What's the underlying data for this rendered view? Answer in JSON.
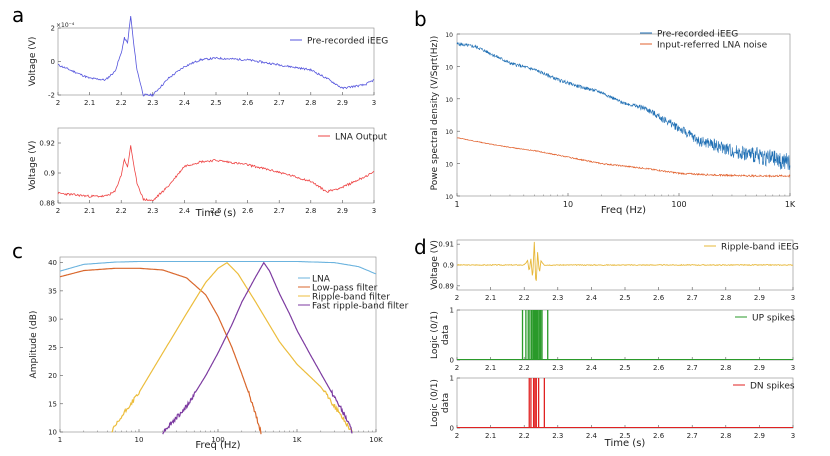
{
  "panel_letters": {
    "a": "a",
    "b": "b",
    "c": "c",
    "d": "d"
  },
  "colors": {
    "blue_eeg": "#5555dd",
    "red_lna": "#ee4444",
    "psd_blue": "#1f6fb4",
    "psd_orange": "#e2622e",
    "lna": "#6bb3de",
    "lowpass": "#d9672c",
    "ripple": "#ecbd3c",
    "fastripple": "#7c3aa0",
    "yellow_d": "#e7b83a",
    "green_up": "#2a9a2a",
    "red_dn": "#e02222"
  },
  "chart_data": [
    {
      "id": "a1",
      "type": "line",
      "title": "",
      "xlabel": "",
      "ylabel": "Voltage (V)",
      "y_multiplier": "×10⁻⁴",
      "xlim": [
        2,
        3
      ],
      "ylim": [
        -2,
        2
      ],
      "xticks": [
        "2",
        "2.1",
        "2.2",
        "2.3",
        "2.4",
        "2.5",
        "2.6",
        "2.7",
        "2.8",
        "2.9",
        "3"
      ],
      "yticks": [
        "-2",
        "0",
        "2"
      ],
      "legend": [
        "Pre-recorded iEEG"
      ],
      "legend_position": "top-right",
      "series": [
        {
          "name": "Pre-recorded iEEG",
          "x": [
            2.0,
            2.05,
            2.1,
            2.15,
            2.18,
            2.2,
            2.21,
            2.22,
            2.23,
            2.24,
            2.25,
            2.27,
            2.3,
            2.35,
            2.4,
            2.45,
            2.5,
            2.6,
            2.7,
            2.8,
            2.85,
            2.9,
            2.93,
            2.97,
            3.0
          ],
          "y": [
            -0.2,
            -0.6,
            -1.0,
            -1.1,
            -0.6,
            0.5,
            1.4,
            1.1,
            2.7,
            1.0,
            -0.5,
            -2.0,
            -2.0,
            -1.0,
            -0.3,
            0.1,
            0.2,
            0.1,
            -0.2,
            -0.5,
            -1.0,
            -1.6,
            -1.5,
            -1.4,
            -1.1
          ]
        }
      ]
    },
    {
      "id": "a2",
      "type": "line",
      "title": "",
      "xlabel": "Time (s)",
      "ylabel": "Voltage (V)",
      "xlim": [
        2,
        3
      ],
      "ylim": [
        0.88,
        0.93
      ],
      "xticks": [
        "2",
        "2.1",
        "2.2",
        "2.3",
        "2.4",
        "2.5",
        "2.6",
        "2.7",
        "2.8",
        "2.9",
        "3"
      ],
      "yticks": [
        "0.88",
        "0.9",
        "0.92"
      ],
      "legend": [
        "LNA Output"
      ],
      "legend_position": "top-right",
      "series": [
        {
          "name": "LNA Output",
          "x": [
            2.0,
            2.05,
            2.1,
            2.15,
            2.18,
            2.2,
            2.21,
            2.22,
            2.23,
            2.24,
            2.25,
            2.27,
            2.3,
            2.35,
            2.4,
            2.45,
            2.5,
            2.6,
            2.7,
            2.8,
            2.85,
            2.9,
            2.95,
            3.0
          ],
          "y": [
            0.8865,
            0.8855,
            0.8845,
            0.8845,
            0.8875,
            0.8985,
            0.9095,
            0.9035,
            0.9185,
            0.9045,
            0.8935,
            0.8825,
            0.8815,
            0.8915,
            0.9045,
            0.9075,
            0.9085,
            0.9055,
            0.9005,
            0.8945,
            0.8875,
            0.8905,
            0.8955,
            0.9005
          ]
        }
      ]
    },
    {
      "id": "b",
      "type": "line",
      "title": "",
      "xlabel": "Freq (Hz)",
      "ylabel": "Powe spectral density (V/Sqrt(Hz))",
      "xscale": "log",
      "xlim": [
        1,
        1000
      ],
      "ylim_exponent": [
        -10,
        -5
      ],
      "xticks": [
        "1",
        "10",
        "100",
        "1K"
      ],
      "yticks": [
        "10",
        "10",
        "10",
        "10",
        "10",
        "10"
      ],
      "legend": [
        "Pre-recorded iEEG",
        "Input-referred LNA noise"
      ],
      "legend_position": "top-right",
      "series": [
        {
          "name": "Pre-recorded iEEG",
          "x": [
            1,
            1.5,
            2,
            3,
            5,
            8,
            12,
            20,
            30,
            50,
            70,
            100,
            150,
            200,
            300,
            500,
            700,
            1000
          ],
          "log10_y": [
            -5.3,
            -5.4,
            -5.6,
            -5.9,
            -6.1,
            -6.4,
            -6.6,
            -6.8,
            -7.1,
            -7.3,
            -7.6,
            -7.9,
            -8.3,
            -8.4,
            -8.6,
            -8.75,
            -8.85,
            -9.0
          ]
        },
        {
          "name": "Input-referred LNA noise",
          "x": [
            1,
            2,
            3,
            5,
            10,
            20,
            50,
            100,
            200,
            500,
            1000
          ],
          "log10_y": [
            -8.2,
            -8.4,
            -8.5,
            -8.6,
            -8.8,
            -9.0,
            -9.15,
            -9.3,
            -9.35,
            -9.38,
            -9.38
          ]
        }
      ]
    },
    {
      "id": "c",
      "type": "line",
      "title": "",
      "xlabel": "Freq (Hz)",
      "ylabel": "Amplitude (dB)",
      "xscale": "log",
      "xlim": [
        1,
        10000
      ],
      "ylim": [
        10,
        41
      ],
      "xticks": [
        "1",
        "10",
        "100",
        "1K",
        "10K"
      ],
      "yticks": [
        "10",
        "15",
        "20",
        "25",
        "30",
        "35",
        "40"
      ],
      "legend": [
        "LNA",
        "Low-pass filter",
        "Ripple-band filter",
        "Fast ripple-band filter"
      ],
      "legend_position": "right",
      "series": [
        {
          "name": "LNA",
          "x": [
            1,
            2,
            5,
            10,
            100,
            1000,
            3000,
            6000,
            10000
          ],
          "y": [
            38.5,
            39.7,
            40.1,
            40.2,
            40.2,
            40.2,
            40.0,
            39.3,
            38.0
          ]
        },
        {
          "name": "Low-pass filter",
          "x": [
            1,
            2,
            5,
            10,
            20,
            40,
            70,
            100,
            150,
            200,
            250,
            300,
            350
          ],
          "y": [
            37.5,
            38.6,
            39.0,
            39.0,
            38.7,
            37.3,
            34.3,
            30.5,
            25.0,
            20.3,
            16.5,
            13.0,
            10.0
          ]
        },
        {
          "name": "Ripple-band filter",
          "x": [
            4.5,
            7,
            10,
            20,
            40,
            70,
            100,
            130,
            180,
            300,
            600,
            1000,
            2000,
            3000,
            4000,
            5000
          ],
          "y": [
            10.0,
            14.0,
            17.0,
            24.0,
            31.0,
            36.5,
            39.0,
            40.0,
            38.0,
            33.0,
            26.0,
            22.0,
            18.0,
            14.5,
            12.0,
            10.0
          ]
        },
        {
          "name": "Fast ripple-band filter",
          "x": [
            20,
            40,
            70,
            100,
            150,
            200,
            300,
            380,
            450,
            600,
            800,
            1000,
            1500,
            2500,
            4000,
            5000
          ],
          "y": [
            10.0,
            14.5,
            20.0,
            24.0,
            29.0,
            33.0,
            37.5,
            40.0,
            38.5,
            34.5,
            31.0,
            28.0,
            23.5,
            18.0,
            13.0,
            10.0
          ]
        }
      ]
    },
    {
      "id": "d1",
      "type": "line",
      "title": "",
      "xlabel": "",
      "ylabel": "Voltage (V)",
      "xlim": [
        2,
        3
      ],
      "ylim": [
        0.888,
        0.912
      ],
      "xticks": [
        "2",
        "2.1",
        "2.2",
        "2.3",
        "2.4",
        "2.5",
        "2.6",
        "2.7",
        "2.8",
        "2.9",
        "3"
      ],
      "yticks": [
        "0.89",
        "0.9",
        "0.91"
      ],
      "legend": [
        "Ripple-band iEEG"
      ],
      "legend_position": "top-right",
      "series": [
        {
          "name": "Ripple-band iEEG",
          "x": [
            2.0,
            2.2,
            2.21,
            2.215,
            2.22,
            2.225,
            2.23,
            2.235,
            2.24,
            2.245,
            2.25,
            2.26,
            3.0
          ],
          "y": [
            0.9,
            0.9,
            0.902,
            0.897,
            0.903,
            0.893,
            0.911,
            0.889,
            0.906,
            0.896,
            0.902,
            0.9,
            0.9
          ]
        }
      ]
    },
    {
      "id": "d2",
      "type": "bar",
      "title": "",
      "xlabel": "",
      "ylabel": "Logic (0/1) data",
      "xlim": [
        2,
        3
      ],
      "ylim": [
        0,
        1
      ],
      "xticks": [
        "2",
        "2.1",
        "2.2",
        "2.3",
        "2.4",
        "2.5",
        "2.6",
        "2.7",
        "2.8",
        "2.9",
        "3"
      ],
      "yticks": [
        "0",
        "1"
      ],
      "legend": [
        "UP spikes"
      ],
      "legend_position": "top-right",
      "series": [
        {
          "name": "UP spikes",
          "x": [
            2.195,
            2.205,
            2.212,
            2.217,
            2.222,
            2.226,
            2.229,
            2.232,
            2.235,
            2.238,
            2.241,
            2.245,
            2.249,
            2.253,
            2.27
          ],
          "values": [
            1,
            1,
            1,
            1,
            1,
            1,
            1,
            1,
            1,
            1,
            1,
            1,
            1,
            1,
            1
          ]
        }
      ]
    },
    {
      "id": "d3",
      "type": "bar",
      "title": "",
      "xlabel": "Time (s)",
      "ylabel": "Logic (0/1) data",
      "xlim": [
        2,
        3
      ],
      "ylim": [
        0,
        1
      ],
      "xticks": [
        "2",
        "2.1",
        "2.2",
        "2.3",
        "2.4",
        "2.5",
        "2.6",
        "2.7",
        "2.8",
        "2.9",
        "3"
      ],
      "yticks": [
        "0",
        "1"
      ],
      "legend": [
        "DN spikes"
      ],
      "legend_position": "top-right",
      "series": [
        {
          "name": "DN spikes",
          "x": [
            2.215,
            2.22,
            2.228,
            2.232,
            2.236,
            2.243,
            2.26
          ],
          "values": [
            1,
            1,
            1,
            1,
            1,
            1,
            1
          ]
        }
      ]
    }
  ]
}
